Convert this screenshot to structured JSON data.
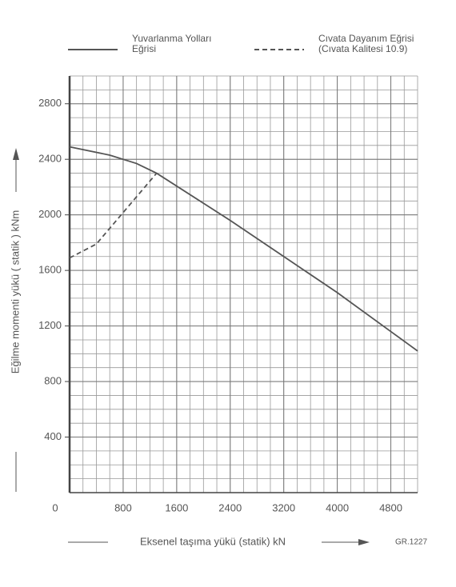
{
  "chart_data": {
    "type": "line",
    "x_label": "Eksenel taşıma yükü  (statik) kN",
    "y_label": "Eğilme momenti yükü  ( statik )   kNm",
    "note": "GR.1227",
    "xlim": [
      0,
      5200
    ],
    "ylim": [
      0,
      3000
    ],
    "xticks": [
      0,
      800,
      1600,
      2400,
      3200,
      4000,
      4800
    ],
    "yticks": [
      400,
      800,
      1200,
      1600,
      2000,
      2400,
      2800
    ],
    "grid": true,
    "minor_grid": {
      "x": 200,
      "y": 100
    },
    "series": [
      {
        "name": [
          "Yuvarlanma Yolları",
          "Eğrisi"
        ],
        "color": "#555555",
        "style": "solid",
        "x": [
          0,
          600,
          1000,
          1300,
          2400,
          3200,
          4000,
          4800,
          5200
        ],
        "values": [
          2490,
          2430,
          2370,
          2300,
          1960,
          1700,
          1440,
          1160,
          1020
        ]
      },
      {
        "name": [
          "Cıvata Dayanım Eğrisi",
          "(Cıvata Kalitesi 10.9)"
        ],
        "color": "#555555",
        "style": "dashed",
        "x": [
          0,
          400,
          1300
        ],
        "values": [
          1690,
          1790,
          2300
        ]
      }
    ]
  }
}
